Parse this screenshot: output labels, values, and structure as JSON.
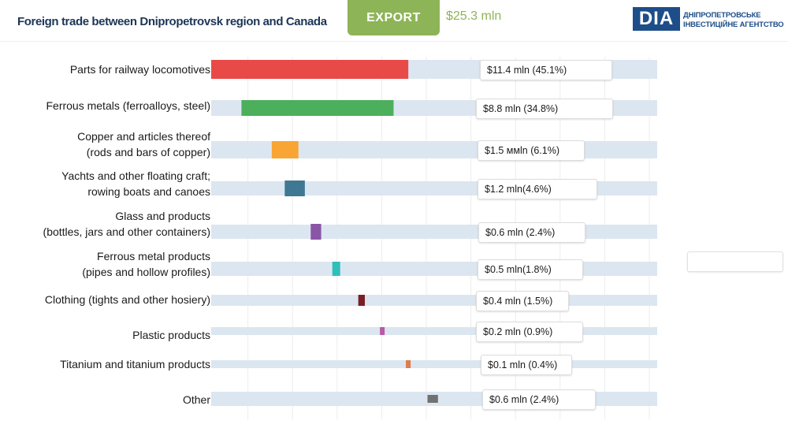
{
  "header": {
    "title": "Foreign trade between Dnipropetrovsk region and Canada",
    "export_label": "EXPORT",
    "total_value": "$25.3 mln",
    "logo": {
      "mark": "DIA",
      "line1": "ДНІПРОПЕТРОВСЬКЕ",
      "line2": "ІНВЕСТИЦІЙНЕ АГЕНТСТВО"
    }
  },
  "colors": {
    "accent": "#8db456",
    "brand": "#1d4e89",
    "title": "#1d3557",
    "track": "#dce6f1",
    "grid": "#ececec"
  },
  "chart_data": {
    "type": "bar",
    "orientation": "horizontal",
    "layout": "waterfall",
    "categories": [
      "Parts for railway locomotives",
      "Ferrous metals (ferroalloys, steel)",
      "Copper and articles thereof\n(rods and bars of copper)",
      "Yachts and other floating craft;\nrowing boats and canoes",
      "Glass and products\n(bottles, jars and other containers)",
      "Ferrous metal products\n(pipes and hollow profiles)",
      "Clothing (tights and other hosiery)",
      "Plastic products",
      "Titanium and titanium products",
      "Other"
    ],
    "values": [
      45.1,
      34.8,
      6.1,
      4.6,
      2.4,
      1.8,
      1.5,
      0.9,
      0.4,
      2.4
    ],
    "value_labels": [
      "$11.4  mln (45.1%)",
      "$8.8  mln (34.8%)",
      "$1.5 ммln (6.1%)",
      "$1.2  mln(4.6%)",
      "$0.6 mln (2.4%)",
      "$0.5 mln(1.8%)",
      "$0.4 mln (1.5%)",
      "$0.2 mln (0.9%)",
      "$0.1 mln (0.4%)",
      "$0.6 mln (2.4%)"
    ],
    "unit": "%",
    "xlim": [
      0,
      100
    ],
    "bar_colors": [
      "#e84b47",
      "#4caf5b",
      "#f9a533",
      "#3e7893",
      "#8b55a7",
      "#2fbfba",
      "#7a1f23",
      "#b85aa6",
      "#e07b4a",
      "#717171"
    ],
    "grid": true,
    "legend": "none"
  }
}
